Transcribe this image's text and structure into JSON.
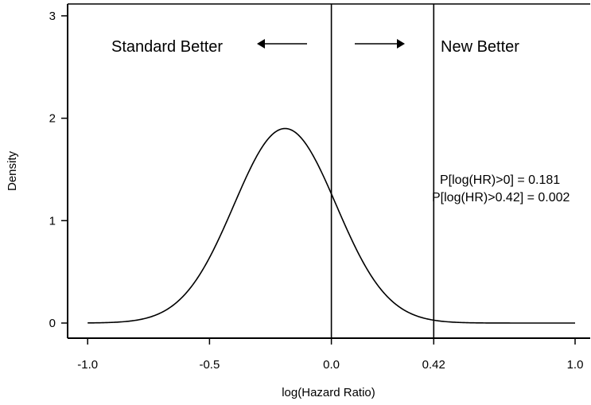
{
  "chart_data": {
    "type": "line",
    "xlabel": "log(Hazard Ratio)",
    "ylabel": "Density",
    "xlim": [
      -1.05,
      1.05
    ],
    "ylim": [
      -0.1,
      3.1
    ],
    "x_ticks": [
      {
        "value": -1.0,
        "label": "-1.0"
      },
      {
        "value": -0.5,
        "label": "-0.5"
      },
      {
        "value": 0.0,
        "label": "0.0"
      },
      {
        "value": 0.42,
        "label": "0.42"
      },
      {
        "value": 1.0,
        "label": "1.0"
      }
    ],
    "y_ticks": [
      {
        "value": 0,
        "label": "0"
      },
      {
        "value": 1,
        "label": "1"
      },
      {
        "value": 2,
        "label": "2"
      },
      {
        "value": 3,
        "label": "3"
      }
    ],
    "vertical_lines": [
      0.0,
      0.42
    ],
    "series": [
      {
        "distribution": "normal",
        "mean": -0.19,
        "sd": 0.21,
        "x": [
          -1.0,
          -0.9,
          -0.8,
          -0.7,
          -0.6,
          -0.5,
          -0.4,
          -0.3,
          -0.2,
          -0.19,
          -0.1,
          0.0,
          0.1,
          0.2,
          0.3,
          0.42,
          0.5,
          0.6,
          0.7,
          0.8,
          0.9,
          1.0
        ],
        "y": [
          0.0,
          0.0,
          0.03,
          0.1,
          0.28,
          0.64,
          1.16,
          1.66,
          1.9,
          1.9,
          1.74,
          1.25,
          0.72,
          0.34,
          0.13,
          0.03,
          0.01,
          0.0,
          0.0,
          0.0,
          0.0,
          0.0
        ]
      }
    ],
    "annotations": {
      "left_region": "Standard Better",
      "right_region": "New Better",
      "prob_1": "P[log(HR)>0] = 0.181",
      "prob_2": "P[log(HR)>0.42] = 0.002"
    },
    "arrows": [
      "left",
      "right"
    ],
    "grid": false,
    "legend": "none"
  }
}
